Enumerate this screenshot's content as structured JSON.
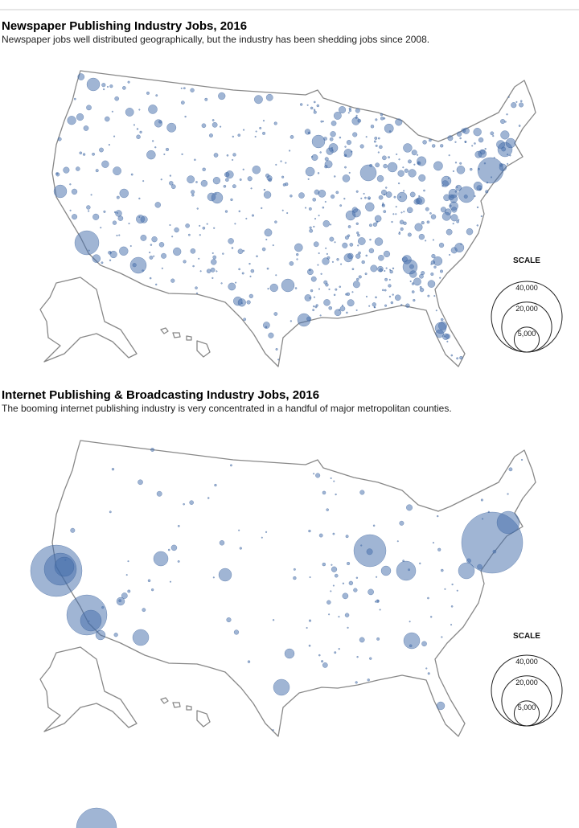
{
  "maps": [
    {
      "title": "Newspaper Publishing Industry Jobs, 2016",
      "subtitle": "Newspaper jobs well distributed geographically, but the industry has been shedding jobs since 2008.",
      "scale_title": "SCALE",
      "scale": [
        {
          "value": 40000,
          "label": "40,000"
        },
        {
          "value": 20000,
          "label": "20,000"
        },
        {
          "value": 5000,
          "label": "5,000"
        }
      ]
    },
    {
      "title": "Internet Publishing & Broadcasting Industry Jobs, 2016",
      "subtitle": "The booming internet publishing industry is very concentrated in a handful of major metropolitan counties.",
      "scale_title": "SCALE",
      "scale": [
        {
          "value": 40000,
          "label": "40,000"
        },
        {
          "value": 20000,
          "label": "20,000"
        },
        {
          "value": 5000,
          "label": "5,000"
        }
      ]
    }
  ]
}
